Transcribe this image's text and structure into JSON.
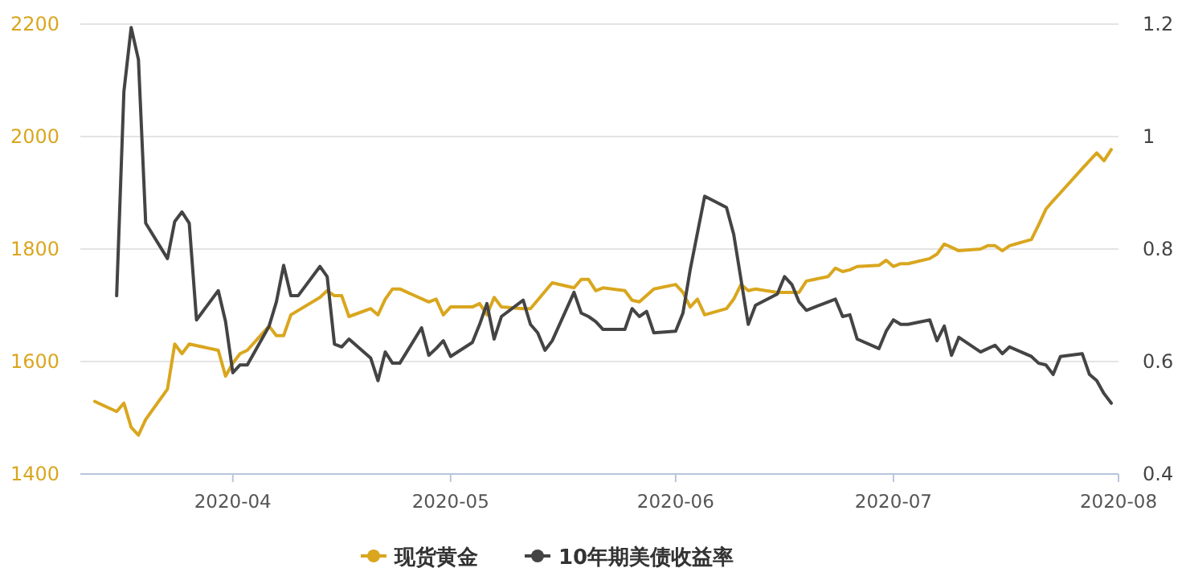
{
  "chart_data": {
    "type": "line",
    "legend": "bottom",
    "grid": "y",
    "xlim": [
      "2020-03-11",
      "2020-08-01"
    ],
    "xticks": [
      {
        "value": "2020-04-01",
        "label": "2020-04"
      },
      {
        "value": "2020-05-01",
        "label": "2020-05"
      },
      {
        "value": "2020-06-01",
        "label": "2020-06"
      },
      {
        "value": "2020-07-01",
        "label": "2020-07"
      },
      {
        "value": "2020-08-01",
        "label": "2020-08"
      }
    ],
    "ylim": [
      1400,
      2200
    ],
    "yticks": [
      1400,
      1600,
      1800,
      2000,
      2200
    ],
    "y2lim": [
      0.4,
      1.2
    ],
    "y2ticks": [
      0.4,
      0.6,
      0.8,
      1,
      1.2
    ],
    "series": [
      {
        "name": "现货黄金",
        "color": "#d9a61e",
        "x": [
          "2020-03-13",
          "2020-03-16",
          "2020-03-17",
          "2020-03-18",
          "2020-03-19",
          "2020-03-20",
          "2020-03-23",
          "2020-03-24",
          "2020-03-25",
          "2020-03-26",
          "2020-03-30",
          "2020-03-31",
          "2020-04-01",
          "2020-04-02",
          "2020-04-03",
          "2020-04-06",
          "2020-04-07",
          "2020-04-08",
          "2020-04-09",
          "2020-04-13",
          "2020-04-14",
          "2020-04-15",
          "2020-04-16",
          "2020-04-17",
          "2020-04-20",
          "2020-04-21",
          "2020-04-22",
          "2020-04-23",
          "2020-04-24",
          "2020-04-28",
          "2020-04-29",
          "2020-04-30",
          "2020-05-01",
          "2020-05-04",
          "2020-05-05",
          "2020-05-06",
          "2020-05-07",
          "2020-05-08",
          "2020-05-11",
          "2020-05-12",
          "2020-05-15",
          "2020-05-18",
          "2020-05-19",
          "2020-05-20",
          "2020-05-21",
          "2020-05-22",
          "2020-05-25",
          "2020-05-26",
          "2020-05-27",
          "2020-05-29",
          "2020-06-01",
          "2020-06-02",
          "2020-06-03",
          "2020-06-04",
          "2020-06-05",
          "2020-06-08",
          "2020-06-09",
          "2020-06-10",
          "2020-06-11",
          "2020-06-12",
          "2020-06-15",
          "2020-06-16",
          "2020-06-18",
          "2020-06-19",
          "2020-06-22",
          "2020-06-23",
          "2020-06-24",
          "2020-06-25",
          "2020-06-26",
          "2020-06-29",
          "2020-06-30",
          "2020-07-01",
          "2020-07-02",
          "2020-07-03",
          "2020-07-06",
          "2020-07-07",
          "2020-07-08",
          "2020-07-09",
          "2020-07-10",
          "2020-07-13",
          "2020-07-14",
          "2020-07-15",
          "2020-07-16",
          "2020-07-17",
          "2020-07-20",
          "2020-07-21",
          "2020-07-22",
          "2020-07-23",
          "2020-07-24",
          "2020-07-27",
          "2020-07-28",
          "2020-07-29",
          "2020-07-30",
          "2020-07-31"
        ],
        "values": [
          1529,
          1511,
          1526,
          1483,
          1469,
          1497,
          1551,
          1631,
          1614,
          1631,
          1620,
          1574,
          1597,
          1614,
          1620,
          1663,
          1646,
          1646,
          1683,
          1714,
          1726,
          1717,
          1717,
          1680,
          1694,
          1683,
          1711,
          1729,
          1729,
          1706,
          1711,
          1683,
          1697,
          1697,
          1703,
          1683,
          1714,
          1697,
          1694,
          1694,
          1740,
          1731,
          1746,
          1746,
          1726,
          1731,
          1726,
          1709,
          1706,
          1729,
          1737,
          1723,
          1697,
          1711,
          1683,
          1694,
          1711,
          1737,
          1726,
          1729,
          1723,
          1723,
          1723,
          1743,
          1751,
          1766,
          1760,
          1763,
          1769,
          1771,
          1780,
          1769,
          1774,
          1774,
          1783,
          1791,
          1809,
          1803,
          1797,
          1800,
          1806,
          1806,
          1797,
          1806,
          1817,
          1843,
          1871,
          1886,
          1900,
          1943,
          1957,
          1971,
          1957,
          1977
        ]
      },
      {
        "name": "10年期美债收益率",
        "color": "#444444",
        "axis": "y2",
        "x": [
          "2020-03-16",
          "2020-03-17",
          "2020-03-18",
          "2020-03-19",
          "2020-03-20",
          "2020-03-23",
          "2020-03-24",
          "2020-03-25",
          "2020-03-26",
          "2020-03-27",
          "2020-03-30",
          "2020-03-31",
          "2020-04-01",
          "2020-04-02",
          "2020-04-03",
          "2020-04-06",
          "2020-04-07",
          "2020-04-08",
          "2020-04-09",
          "2020-04-10",
          "2020-04-13",
          "2020-04-14",
          "2020-04-15",
          "2020-04-16",
          "2020-04-17",
          "2020-04-20",
          "2020-04-21",
          "2020-04-22",
          "2020-04-23",
          "2020-04-24",
          "2020-04-27",
          "2020-04-28",
          "2020-04-29",
          "2020-04-30",
          "2020-05-01",
          "2020-05-04",
          "2020-05-05",
          "2020-05-06",
          "2020-05-07",
          "2020-05-08",
          "2020-05-11",
          "2020-05-12",
          "2020-05-13",
          "2020-05-14",
          "2020-05-15",
          "2020-05-18",
          "2020-05-19",
          "2020-05-20",
          "2020-05-21",
          "2020-05-22",
          "2020-05-25",
          "2020-05-26",
          "2020-05-27",
          "2020-05-28",
          "2020-05-29",
          "2020-06-01",
          "2020-06-02",
          "2020-06-03",
          "2020-06-05",
          "2020-06-08",
          "2020-06-09",
          "2020-06-10",
          "2020-06-11",
          "2020-06-12",
          "2020-06-15",
          "2020-06-16",
          "2020-06-17",
          "2020-06-18",
          "2020-06-19",
          "2020-06-22",
          "2020-06-23",
          "2020-06-24",
          "2020-06-25",
          "2020-06-26",
          "2020-06-29",
          "2020-06-30",
          "2020-07-01",
          "2020-07-02",
          "2020-07-03",
          "2020-07-06",
          "2020-07-07",
          "2020-07-08",
          "2020-07-09",
          "2020-07-10",
          "2020-07-13",
          "2020-07-14",
          "2020-07-15",
          "2020-07-16",
          "2020-07-17",
          "2020-07-20",
          "2020-07-21",
          "2020-07-22",
          "2020-07-23",
          "2020-07-24",
          "2020-07-27",
          "2020-07-28",
          "2020-07-29",
          "2020-07-30",
          "2020-07-31"
        ],
        "values": [
          0.717,
          1.08,
          1.194,
          1.137,
          0.846,
          0.783,
          0.849,
          0.866,
          0.846,
          0.674,
          0.726,
          0.671,
          0.58,
          0.594,
          0.594,
          0.663,
          0.706,
          0.771,
          0.717,
          0.717,
          0.769,
          0.751,
          0.631,
          0.626,
          0.64,
          0.606,
          0.566,
          0.617,
          0.597,
          0.597,
          0.66,
          0.611,
          0.623,
          0.637,
          0.609,
          0.634,
          0.666,
          0.703,
          0.64,
          0.68,
          0.709,
          0.666,
          0.651,
          0.62,
          0.637,
          0.723,
          0.686,
          0.68,
          0.671,
          0.657,
          0.657,
          0.694,
          0.68,
          0.689,
          0.651,
          0.654,
          0.686,
          0.763,
          0.894,
          0.874,
          0.826,
          0.746,
          0.666,
          0.7,
          0.72,
          0.751,
          0.737,
          0.706,
          0.691,
          0.706,
          0.711,
          0.68,
          0.683,
          0.64,
          0.623,
          0.654,
          0.674,
          0.666,
          0.666,
          0.674,
          0.637,
          0.663,
          0.611,
          0.643,
          0.617,
          0.623,
          0.629,
          0.614,
          0.626,
          0.609,
          0.597,
          0.594,
          0.577,
          0.609,
          0.614,
          0.577,
          0.566,
          0.543,
          0.526
        ]
      }
    ]
  }
}
